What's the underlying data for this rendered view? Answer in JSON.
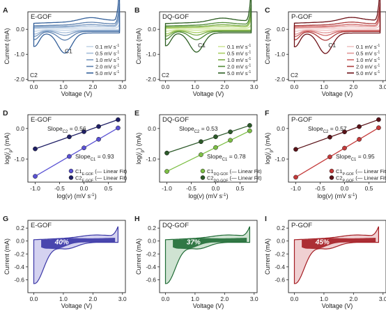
{
  "chart_data": [
    {
      "id": "A",
      "type": "line",
      "kind": "cv",
      "panel_label": "A",
      "title": "E-GOF",
      "xlabel": "Voltage (V)",
      "ylabel": "Current (mA)",
      "xlim": [
        -0.2,
        3.1
      ],
      "ylim": [
        -2.05,
        0.7
      ],
      "xticks": [
        "0.0",
        "1.0",
        "2.0",
        "3.0"
      ],
      "yticks": [
        "-2.0",
        "-1.0",
        "0.0"
      ],
      "scans": [
        0.1,
        0.5,
        1.0,
        2.0,
        5.0
      ],
      "legend": [
        "0.1 mV s-1",
        "0.5 mV s-1",
        "1.0 mV s-1",
        "2.0 mV s-1",
        "5.0 mV s-1"
      ],
      "colors": [
        "#c5d5e8",
        "#a3bcd9",
        "#7d9cc3",
        "#5a7fae",
        "#34609a"
      ],
      "peak_labels": [
        "C1",
        "C2"
      ]
    },
    {
      "id": "B",
      "type": "line",
      "kind": "cv",
      "panel_label": "B",
      "title": "DQ-GOF",
      "xlabel": "Voltage (V)",
      "ylabel": "Current (mA)",
      "xlim": [
        -0.2,
        3.1
      ],
      "ylim": [
        -2.05,
        0.7
      ],
      "xticks": [
        "0.0",
        "1.0",
        "2.0",
        "3.0"
      ],
      "yticks": [
        "-2.0",
        "-1.0",
        "0.0"
      ],
      "scans": [
        0.1,
        0.5,
        1.0,
        2.0,
        5.0
      ],
      "legend": [
        "0.1 mV s-1",
        "0.5 mV s-1",
        "1.0 mV s-1",
        "2.0 mV s-1",
        "5.0 mV s-1"
      ],
      "colors": [
        "#cfe69a",
        "#a8cf62",
        "#79ab45",
        "#4f8a35",
        "#2c5e22"
      ],
      "peak_labels": [
        "C1",
        "C2"
      ]
    },
    {
      "id": "C",
      "type": "line",
      "kind": "cv",
      "panel_label": "C",
      "title": "P-GOF",
      "xlabel": "Voltage (V)",
      "ylabel": "Current (mA)",
      "xlim": [
        -0.2,
        3.1
      ],
      "ylim": [
        -2.05,
        0.7
      ],
      "xticks": [
        "0.0",
        "1.0",
        "2.0",
        "3.0"
      ],
      "yticks": [
        "-2.0",
        "-1.0",
        "0.0"
      ],
      "scans": [
        0.1,
        0.5,
        1.0,
        2.0,
        5.0
      ],
      "legend": [
        "0.1 mV s-1",
        "0.5 mV s-1",
        "1.0 mV s-1",
        "2.0 mV s-1",
        "5.0 mV s-1"
      ],
      "colors": [
        "#f0c4c4",
        "#e29696",
        "#d06868",
        "#ad3a3a",
        "#6e1218"
      ],
      "peak_labels": [
        "C1",
        "C2"
      ]
    },
    {
      "id": "D",
      "type": "scatter",
      "kind": "fit",
      "panel_label": "D",
      "title": "E-GOF",
      "xlabel": "log(v) (mV s-1)",
      "ylabel": "log(ip) (mA)",
      "xlim": [
        -1.15,
        0.85
      ],
      "ylim": [
        -1.75,
        0.45
      ],
      "xticks": [
        "-1.0",
        "-0.5",
        "0.0",
        "0.5"
      ],
      "yticks": [
        "-1.0",
        "0.0"
      ],
      "x": [
        -1.0,
        -0.301,
        0.0,
        0.301,
        0.699
      ],
      "series": [
        {
          "label": "C2",
          "subscript": "E-GOF",
          "values": [
            -0.664,
            -0.272,
            -0.104,
            0.065,
            0.288
          ],
          "color": "#1f1f66"
        },
        {
          "label": "C1",
          "subscript": "E-GOF",
          "values": [
            -1.56,
            -0.911,
            -0.632,
            -0.352,
            0.018
          ],
          "color": "#5a52d4"
        }
      ],
      "slopes": [
        {
          "label": "Slope",
          "subscript": "C2",
          "value": "= 0.56"
        },
        {
          "label": "Slope",
          "subscript": "C1",
          "value": "= 0.93"
        }
      ],
      "fit_label": "Linear Fit"
    },
    {
      "id": "E",
      "type": "scatter",
      "kind": "fit",
      "panel_label": "E",
      "title": "DQ-GOF",
      "xlabel": "log(v) (mV s-1)",
      "ylabel": "log(ip) (mA)",
      "xlim": [
        -1.15,
        0.85
      ],
      "ylim": [
        -1.75,
        0.45
      ],
      "xticks": [
        "-1.0",
        "-0.5",
        "0.0",
        "0.5"
      ],
      "yticks": [
        "-1.0",
        "0.0"
      ],
      "x": [
        -1.0,
        -0.301,
        0.0,
        0.301,
        0.699
      ],
      "series": [
        {
          "label": "C2",
          "subscript": "DQ-GOF",
          "values": [
            -0.8,
            -0.429,
            -0.27,
            -0.11,
            0.1
          ],
          "color": "#2d5a2a"
        },
        {
          "label": "C1",
          "subscript": "DQ-GOF",
          "values": [
            -1.4,
            -0.855,
            -0.62,
            -0.385,
            -0.075
          ],
          "color": "#7dbf45"
        }
      ],
      "slopes": [
        {
          "label": "Slope",
          "subscript": "C2",
          "value": "= 0.53"
        },
        {
          "label": "Slope",
          "subscript": "C1",
          "value": "= 0.78"
        }
      ],
      "fit_label": "Linear Fit"
    },
    {
      "id": "F",
      "type": "scatter",
      "kind": "fit",
      "panel_label": "F",
      "title": "P-GOF",
      "xlabel": "log(v) (mV s-1)",
      "ylabel": "log(ip) (mA)",
      "xlim": [
        -1.15,
        0.85
      ],
      "ylim": [
        -1.75,
        0.45
      ],
      "xticks": [
        "-1.0",
        "-0.5",
        "0.0",
        "0.5"
      ],
      "yticks": [
        "-1.0",
        "0.0"
      ],
      "x": [
        -1.0,
        -0.301,
        0.0,
        0.301,
        0.699
      ],
      "series": [
        {
          "label": "C2",
          "subscript": "P-GOF",
          "values": [
            -0.68,
            -0.282,
            -0.11,
            0.061,
            0.29
          ],
          "color": "#5a1218"
        },
        {
          "label": "C1",
          "subscript": "P-GOF",
          "values": [
            -1.59,
            -0.926,
            -0.64,
            -0.354,
            0.024
          ],
          "color": "#c43a3a"
        }
      ],
      "slopes": [
        {
          "label": "Slope",
          "subscript": "C2",
          "value": "= 0.57"
        },
        {
          "label": "Slope",
          "subscript": "C1",
          "value": "= 0.95"
        }
      ],
      "fit_label": "Linear Fit"
    },
    {
      "id": "G",
      "type": "area",
      "kind": "cont",
      "panel_label": "G",
      "title": "E-GOF",
      "xlabel": "Voltage (V)",
      "ylabel": "Current (mA)",
      "xlim": [
        -0.2,
        3.1
      ],
      "ylim": [
        -0.8,
        0.32
      ],
      "xticks": [
        "0.0",
        "1.0",
        "2.0",
        "3.0"
      ],
      "yticks": [
        "-0.6",
        "-0.4",
        "-0.2",
        "0.0",
        "0.2"
      ],
      "percent": "40%",
      "fill_outer": "#d4d2f0",
      "fill_inner": "#3a36a6",
      "stroke": "#3a36a6"
    },
    {
      "id": "H",
      "type": "area",
      "kind": "cont",
      "panel_label": "H",
      "title": "DQ-GOF",
      "xlabel": "Voltage (V)",
      "ylabel": "Current (mA)",
      "xlim": [
        -0.2,
        3.1
      ],
      "ylim": [
        -0.8,
        0.32
      ],
      "xticks": [
        "0.0",
        "1.0",
        "2.0",
        "3.0"
      ],
      "yticks": [
        "-0.6",
        "-0.4",
        "-0.2",
        "0.0",
        "0.2"
      ],
      "percent": "37%",
      "fill_outer": "#cfe3d2",
      "fill_inner": "#1f6b35",
      "stroke": "#1f6b35"
    },
    {
      "id": "I",
      "type": "area",
      "kind": "cont",
      "panel_label": "I",
      "title": "P-GOF",
      "xlabel": "Voltage (V)",
      "ylabel": "Current (mA)",
      "xlim": [
        -0.2,
        3.1
      ],
      "ylim": [
        -0.8,
        0.32
      ],
      "xticks": [
        "0.0",
        "1.0",
        "2.0",
        "3.0"
      ],
      "yticks": [
        "-0.6",
        "-0.4",
        "-0.2",
        "0.0",
        "0.2"
      ],
      "percent": "45%",
      "fill_outer": "#f0d0d2",
      "fill_inner": "#a41c22",
      "stroke": "#a41c22"
    }
  ]
}
